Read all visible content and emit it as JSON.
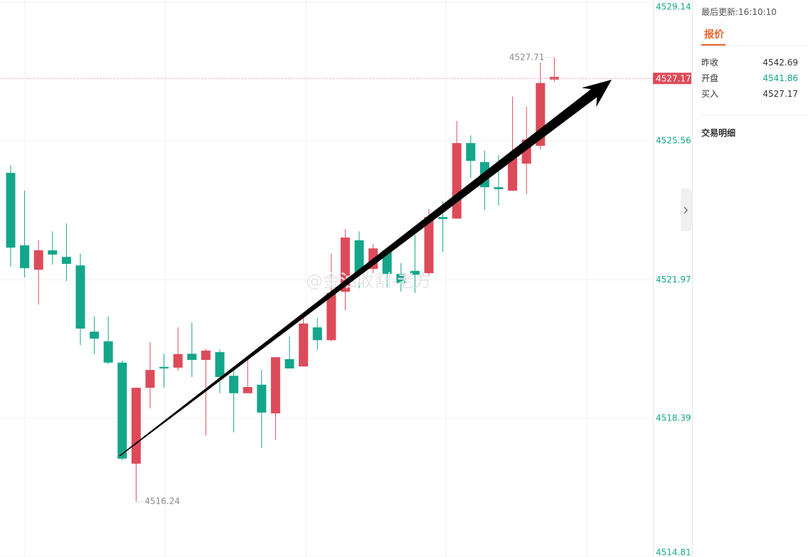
{
  "chart_data": {
    "type": "candlestick",
    "open": [
      4524.73,
      4522.86,
      4522.23,
      4522.73,
      4522.56,
      4522.34,
      4520.63,
      4520.38,
      4519.83,
      4517.22,
      4519.18,
      4519.72,
      4519.7,
      4520.06,
      4519.9,
      4520.1,
      4519.49,
      4519.04,
      4519.26,
      4518.52,
      4519.92,
      4519.73,
      4520.74,
      4520.41,
      4521.66,
      4522.99,
      4522.25,
      4522.73,
      4522.12,
      4522.2,
      4522.14,
      4523.59,
      4523.55,
      4525.5,
      4525.01,
      4524.36,
      4524.27,
      4524.97,
      4525.43,
      4527.14
    ],
    "high": [
      4524.93,
      4524.27,
      4522.99,
      4523.22,
      4523.43,
      4522.64,
      4521.02,
      4521.02,
      4519.88,
      4519.18,
      4520.36,
      4520.06,
      4520.74,
      4520.87,
      4520.19,
      4520.17,
      4519.64,
      4519.94,
      4519.64,
      4519.97,
      4520.51,
      4521.04,
      4520.98,
      4522.65,
      4523.28,
      4523.22,
      4522.89,
      4522.78,
      4522.4,
      4523.13,
      4523.79,
      4524.0,
      4526.07,
      4525.7,
      4525.3,
      4525.19,
      4526.7,
      4526.44,
      4527.58,
      4527.71
    ],
    "low": [
      4522.31,
      4522.03,
      4521.33,
      4522.36,
      4521.94,
      4520.28,
      4520.05,
      4519.79,
      4517.31,
      4516.24,
      4518.65,
      4519.18,
      4519.62,
      4519.46,
      4517.95,
      4519.04,
      4518.03,
      4519.04,
      4517.62,
      4517.84,
      4519.68,
      4519.73,
      4520.16,
      4520.38,
      4521.18,
      4521.75,
      4522.14,
      4521.75,
      4521.66,
      4521.63,
      4522.07,
      4522.69,
      4523.55,
      4524.6,
      4523.78,
      4523.89,
      4524.27,
      4524.18,
      4525.34,
      4527.08
    ],
    "close": [
      4522.8,
      4522.27,
      4522.73,
      4522.62,
      4522.38,
      4520.71,
      4520.45,
      4519.83,
      4517.35,
      4519.18,
      4519.64,
      4519.68,
      4520.05,
      4519.9,
      4520.14,
      4519.46,
      4519.04,
      4519.2,
      4518.54,
      4519.97,
      4519.68,
      4520.84,
      4520.41,
      4521.63,
      4523.06,
      4522.12,
      4522.78,
      4522.12,
      4521.88,
      4522.1,
      4523.59,
      4523.54,
      4525.5,
      4525.04,
      4524.36,
      4524.31,
      4525.15,
      4525.59,
      4527.05,
      4527.21
    ],
    "up_color": "#dd4b5a",
    "down_color": "#14a68a",
    "ylim": [
      4514.81,
      4529.14
    ],
    "yticks": [
      4514.81,
      4518.39,
      4521.97,
      4525.56,
      4529.14
    ],
    "grid": true,
    "last_price": 4527.17,
    "watermark": "@金油收割-老方"
  },
  "sidebar": {
    "last_update": "最后更新:16:10:10",
    "tab": "报价",
    "quotes": [
      {
        "label": "昨收",
        "value": "4542.69"
      },
      {
        "label": "开盘",
        "value": "4541.86"
      },
      {
        "label": "买入",
        "value": "4527.17"
      }
    ],
    "section": "交易明细"
  }
}
